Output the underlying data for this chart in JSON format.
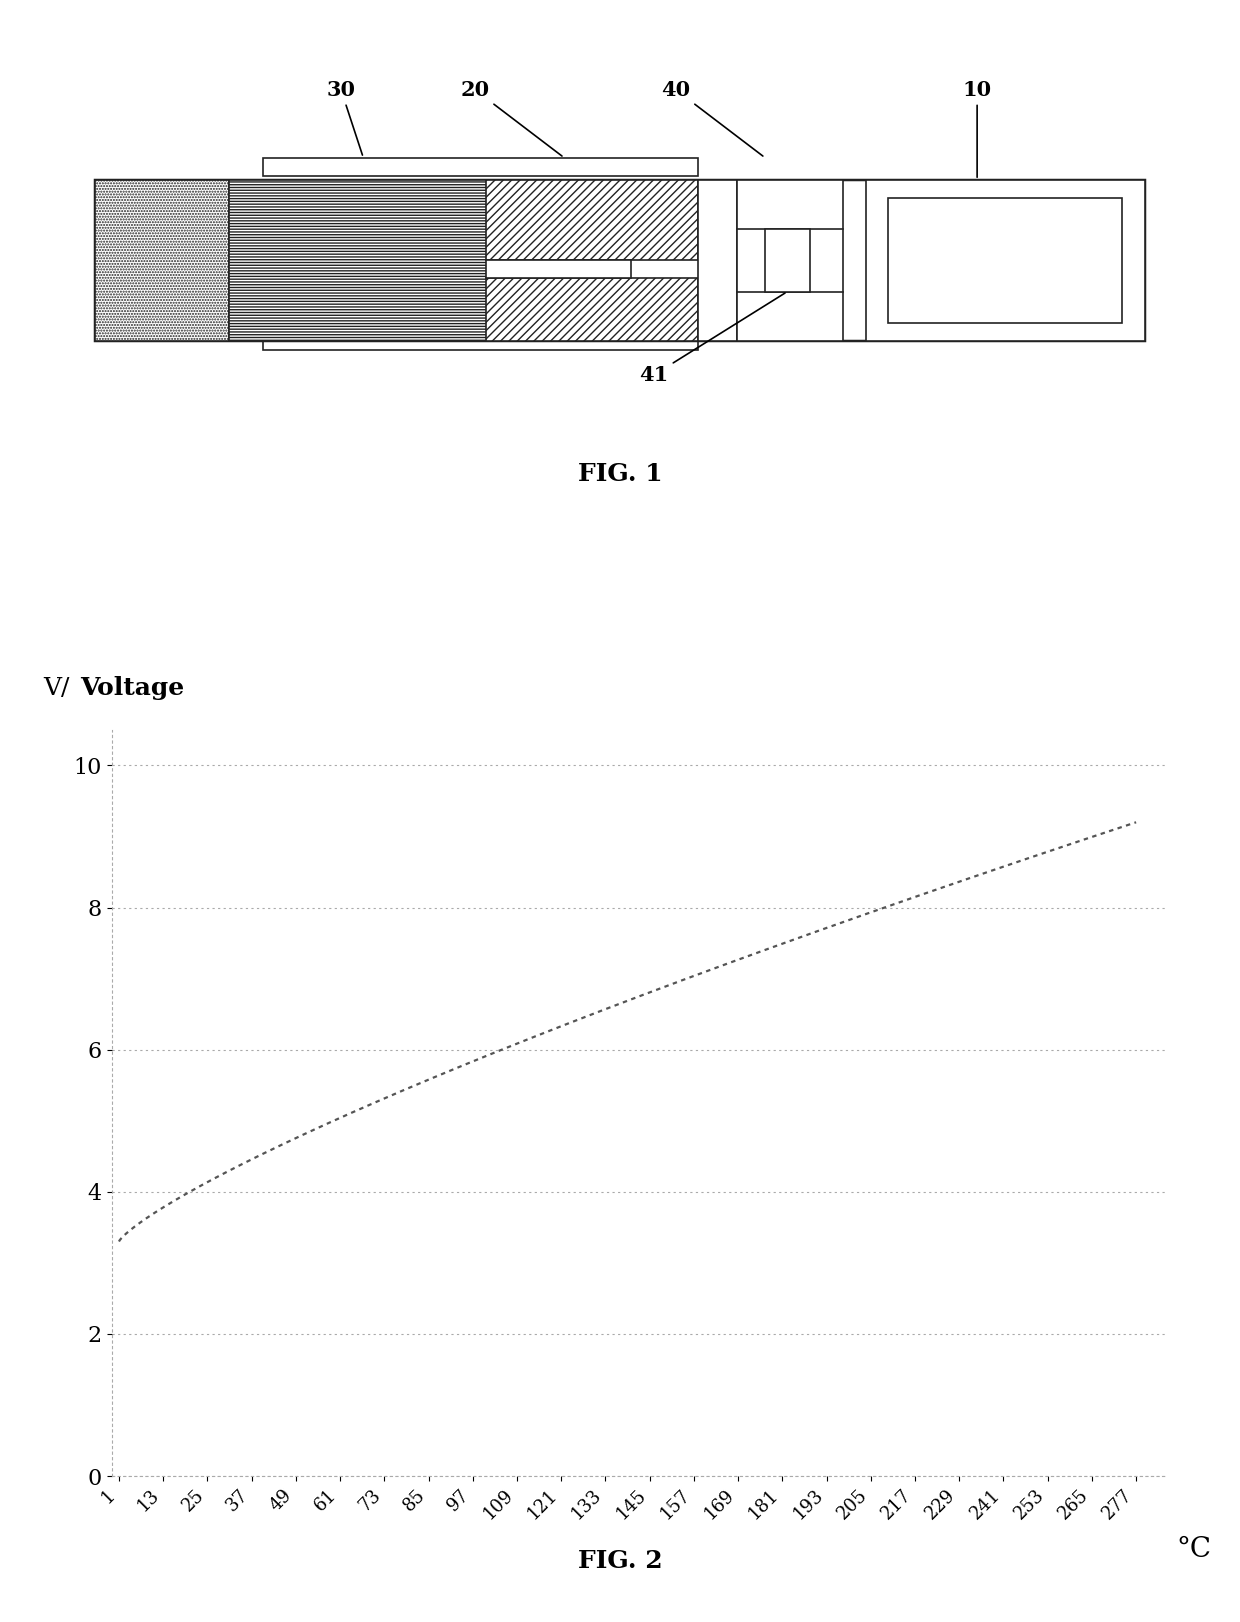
{
  "fig1_label": "FIG. 1",
  "fig2_label": "FIG. 2",
  "ylabel_v": "V/",
  "ylabel_voltage": "Voltage",
  "xlabel_unit": "°C",
  "x_ticks": [
    1,
    13,
    25,
    37,
    49,
    61,
    73,
    85,
    97,
    109,
    121,
    133,
    145,
    157,
    169,
    181,
    193,
    205,
    217,
    229,
    241,
    253,
    265,
    277
  ],
  "y_ticks": [
    0,
    2,
    4,
    6,
    8,
    10
  ],
  "ylim": [
    0,
    10.5
  ],
  "xlim_min": -1,
  "xlim_max": 285,
  "voltage_start": 3.3,
  "voltage_end": 9.2,
  "line_color": "#555555",
  "grid_color": "#aaaaaa",
  "background_color": "#ffffff",
  "fig_label_fontsize": 18,
  "tick_fontsize": 13,
  "label_fontsize": 16,
  "diagram_lw": 1.2,
  "gray": "#222222"
}
